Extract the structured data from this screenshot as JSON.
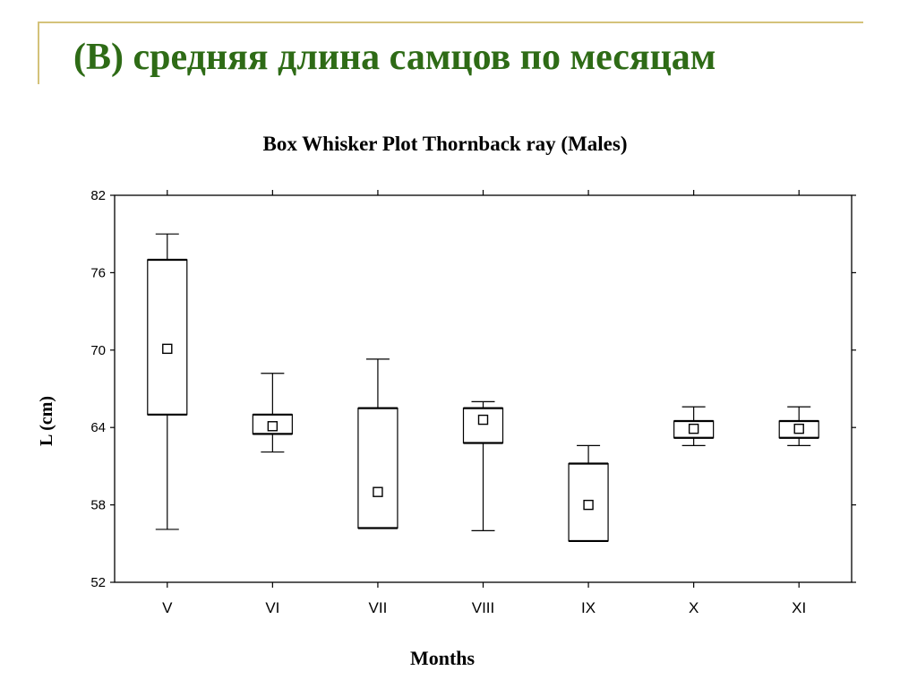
{
  "slide": {
    "title": "(B) средняя длина самцов по месяцам",
    "title_color": "#2e6b16",
    "accent_color": "#d4c27a"
  },
  "chart_data": {
    "type": "boxplot",
    "title": "Box Whisker Plot Thornback ray (Males)",
    "xlabel": "Months",
    "ylabel": "L (cm)",
    "ylim": [
      52,
      82
    ],
    "yticks": [
      52,
      58,
      64,
      70,
      76,
      82
    ],
    "grid": false,
    "categories": [
      "V",
      "VI",
      "VII",
      "VIII",
      "IX",
      "X",
      "XI"
    ],
    "boxes": [
      {
        "category": "V",
        "whisker_low": 56.1,
        "q1": 65.0,
        "mean": 70.1,
        "q3": 77.0,
        "whisker_high": 79.0
      },
      {
        "category": "VI",
        "whisker_low": 62.1,
        "q1": 63.5,
        "mean": 64.1,
        "q3": 65.0,
        "whisker_high": 68.2
      },
      {
        "category": "VII",
        "whisker_low": 56.2,
        "q1": 56.2,
        "mean": 59.0,
        "q3": 65.5,
        "whisker_high": 69.3
      },
      {
        "category": "VIII",
        "whisker_low": 56.0,
        "q1": 62.8,
        "mean": 64.6,
        "q3": 65.5,
        "whisker_high": 66.0
      },
      {
        "category": "IX",
        "whisker_low": 55.2,
        "q1": 55.2,
        "mean": 58.0,
        "q3": 61.2,
        "whisker_high": 62.6
      },
      {
        "category": "X",
        "whisker_low": 62.6,
        "q1": 63.2,
        "mean": 63.9,
        "q3": 64.5,
        "whisker_high": 65.6
      },
      {
        "category": "XI",
        "whisker_low": 62.6,
        "q1": 63.2,
        "mean": 63.9,
        "q3": 64.5,
        "whisker_high": 65.6
      }
    ]
  }
}
